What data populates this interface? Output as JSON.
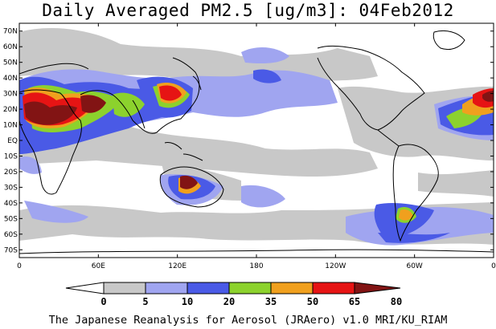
{
  "title": "Daily Averaged PM2.5 [ug/m3]: 04Feb2012",
  "footer": "The Japanese Reanalysis for Aerosol (JRAero) v1.0 MRI/KU_RIAM",
  "map": {
    "projection": "equirectangular",
    "lon_range": [
      0,
      360
    ],
    "lat_range": [
      -75,
      75
    ],
    "lat_ticks": [
      {
        "lat": 70,
        "label": "70N"
      },
      {
        "lat": 60,
        "label": "60N"
      },
      {
        "lat": 50,
        "label": "50N"
      },
      {
        "lat": 40,
        "label": "40N"
      },
      {
        "lat": 30,
        "label": "30N"
      },
      {
        "lat": 20,
        "label": "20N"
      },
      {
        "lat": 10,
        "label": "10N"
      },
      {
        "lat": 0,
        "label": "EQ"
      },
      {
        "lat": -10,
        "label": "10S"
      },
      {
        "lat": -20,
        "label": "20S"
      },
      {
        "lat": -30,
        "label": "30S"
      },
      {
        "lat": -40,
        "label": "40S"
      },
      {
        "lat": -50,
        "label": "50S"
      },
      {
        "lat": -60,
        "label": "60S"
      },
      {
        "lat": -70,
        "label": "70S"
      }
    ],
    "lon_ticks": [
      {
        "lon": 0,
        "label": "0"
      },
      {
        "lon": 60,
        "label": "60E"
      },
      {
        "lon": 120,
        "label": "120E"
      },
      {
        "lon": 180,
        "label": "180"
      },
      {
        "lon": 240,
        "label": "120W"
      },
      {
        "lon": 300,
        "label": "60W"
      },
      {
        "lon": 360,
        "label": "0"
      }
    ]
  },
  "colorbar": {
    "labels": [
      "0",
      "5",
      "10",
      "20",
      "35",
      "50",
      "65",
      "80"
    ],
    "colors": [
      "#ffffff",
      "#c8c8c8",
      "#a0a5f0",
      "#4a5ae6",
      "#8cd22d",
      "#f0a01e",
      "#e61414",
      "#821414"
    ]
  }
}
